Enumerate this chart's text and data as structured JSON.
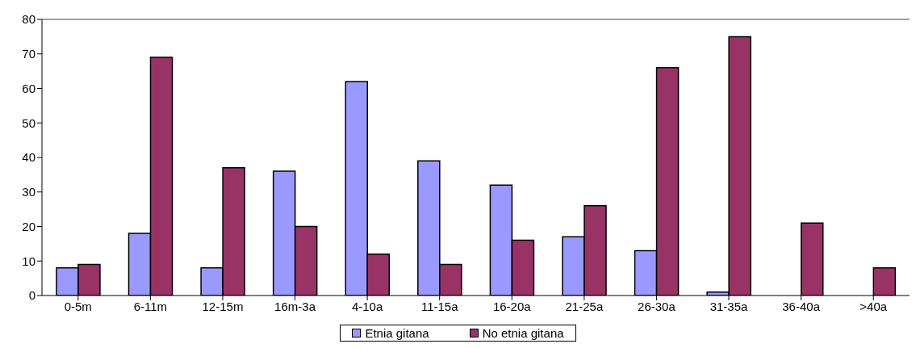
{
  "chart_data": {
    "type": "bar",
    "categories": [
      "0-5m",
      "6-11m",
      "12-15m",
      "16m-3a",
      "4-10a",
      "11-15a",
      "16-20a",
      "21-25a",
      "26-30a",
      "31-35a",
      "36-40a",
      ">40a"
    ],
    "series": [
      {
        "name": "Etnia gitana",
        "color": "#9999ff",
        "values": [
          8,
          18,
          8,
          36,
          62,
          39,
          32,
          17,
          13,
          1,
          0,
          0
        ]
      },
      {
        "name": "No etnia gitana",
        "color": "#993366",
        "values": [
          9,
          69,
          37,
          20,
          12,
          9,
          16,
          26,
          66,
          75,
          21,
          8
        ]
      }
    ],
    "ylim": [
      0,
      80
    ],
    "yticks": [
      0,
      10,
      20,
      30,
      40,
      50,
      60,
      70,
      80
    ],
    "grid": false,
    "legend": "bottom"
  }
}
